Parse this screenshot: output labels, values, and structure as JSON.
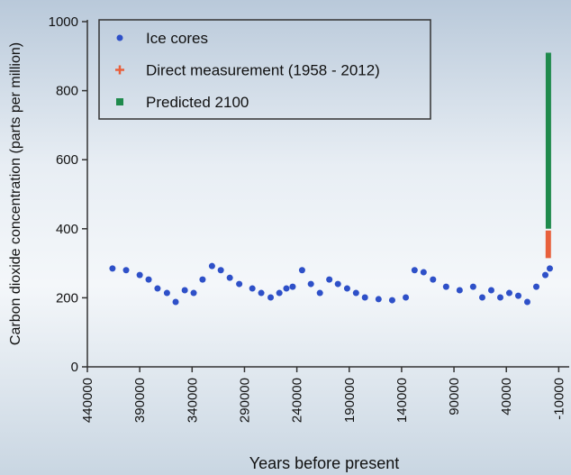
{
  "chart_data": {
    "type": "scatter",
    "x_label": "Years before present",
    "y_label": "Carbon dioxide concentration (parts per million)",
    "xlim": [
      440000,
      -20000
    ],
    "xticks": [
      440000,
      390000,
      340000,
      290000,
      240000,
      190000,
      140000,
      90000,
      40000,
      -10000
    ],
    "ylim": [
      0,
      1000
    ],
    "yticks": [
      0,
      200,
      400,
      600,
      800,
      1000
    ],
    "legend": "upper left",
    "series": [
      {
        "name": "Ice cores",
        "color": "#2e50c8",
        "mode": "markers",
        "x": [
          416000,
          403000,
          390000,
          381500,
          373000,
          364000,
          355700,
          347000,
          338500,
          330000,
          321000,
          312600,
          304000,
          295000,
          282500,
          274000,
          265000,
          256700,
          250000,
          244000,
          235000,
          226600,
          218000,
          209000,
          200800,
          192000,
          183500,
          175000,
          162000,
          149000,
          136000,
          127600,
          119000,
          110000,
          97500,
          84600,
          71700,
          63000,
          54400,
          45800,
          37200,
          28600,
          20000,
          11400,
          2800,
          -1500
        ],
        "values": [
          285,
          280,
          266,
          253,
          227,
          214,
          188,
          222,
          214,
          253,
          292,
          280,
          258,
          240,
          227,
          214,
          201,
          214,
          227,
          232,
          280,
          240,
          214,
          253,
          240,
          227,
          214,
          201,
          196,
          193,
          201,
          280,
          274,
          253,
          232,
          222,
          232,
          201,
          222,
          201,
          214,
          206,
          188,
          232,
          266,
          285
        ]
      },
      {
        "name": "Direct measurement (1958 - 2012)",
        "color": "#e8603c",
        "mode": "lines",
        "x": [
          -8,
          -20,
          -35,
          -50,
          -62
        ],
        "values": [
          315,
          325,
          340,
          365,
          395
        ]
      },
      {
        "name": "Predicted 2100",
        "color": "#1f8a4c",
        "mode": "lines",
        "x": [
          -150,
          -150
        ],
        "values": [
          400,
          910
        ]
      }
    ]
  }
}
